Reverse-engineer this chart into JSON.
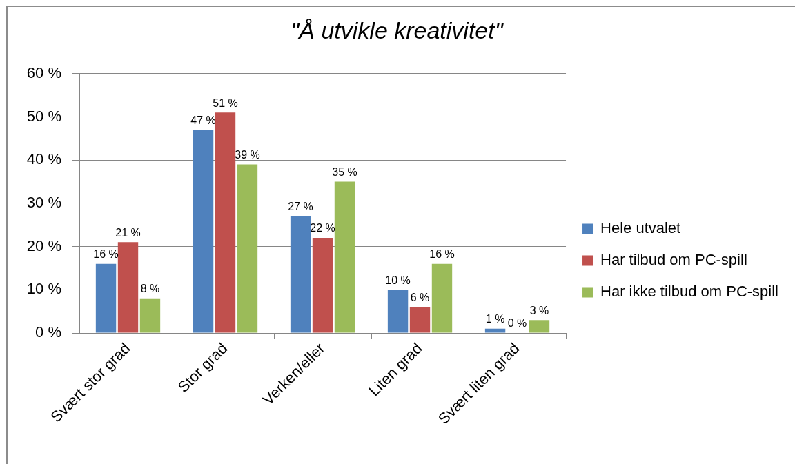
{
  "chart_data": {
    "type": "bar",
    "title": "\"Å utvikle kreativitet\"",
    "categories": [
      "Svært stor grad",
      "Stor grad",
      "Verken/eller",
      "Liten grad",
      "Svært liten grad"
    ],
    "series": [
      {
        "name": "Hele utvalet",
        "color": "#4f81bd",
        "values": [
          16,
          47,
          27,
          10,
          1
        ],
        "value_labels": [
          "16 %",
          "47 %",
          "27 %",
          "10 %",
          "1 %"
        ]
      },
      {
        "name": "Har tilbud om PC-spill",
        "color": "#c0504d",
        "values": [
          21,
          51,
          22,
          6,
          0
        ],
        "value_labels": [
          "21 %",
          "51 %",
          "22 %",
          "6 %",
          "0 %"
        ]
      },
      {
        "name": "Har ikke tilbud om PC-spill",
        "color": "#9bbb59",
        "values": [
          8,
          39,
          35,
          16,
          3
        ],
        "value_labels": [
          "8 %",
          "39 %",
          "35 %",
          "16 %",
          "3 %"
        ]
      }
    ],
    "ylim": [
      0,
      60
    ],
    "yticks": [
      {
        "value": 0,
        "label": "0 %"
      },
      {
        "value": 10,
        "label": "10 %"
      },
      {
        "value": 20,
        "label": "20 %"
      },
      {
        "value": 30,
        "label": "30 %"
      },
      {
        "value": 40,
        "label": "40 %"
      },
      {
        "value": 50,
        "label": "50 %"
      },
      {
        "value": 60,
        "label": "60 %"
      }
    ],
    "grid": "y",
    "legend": "right"
  }
}
